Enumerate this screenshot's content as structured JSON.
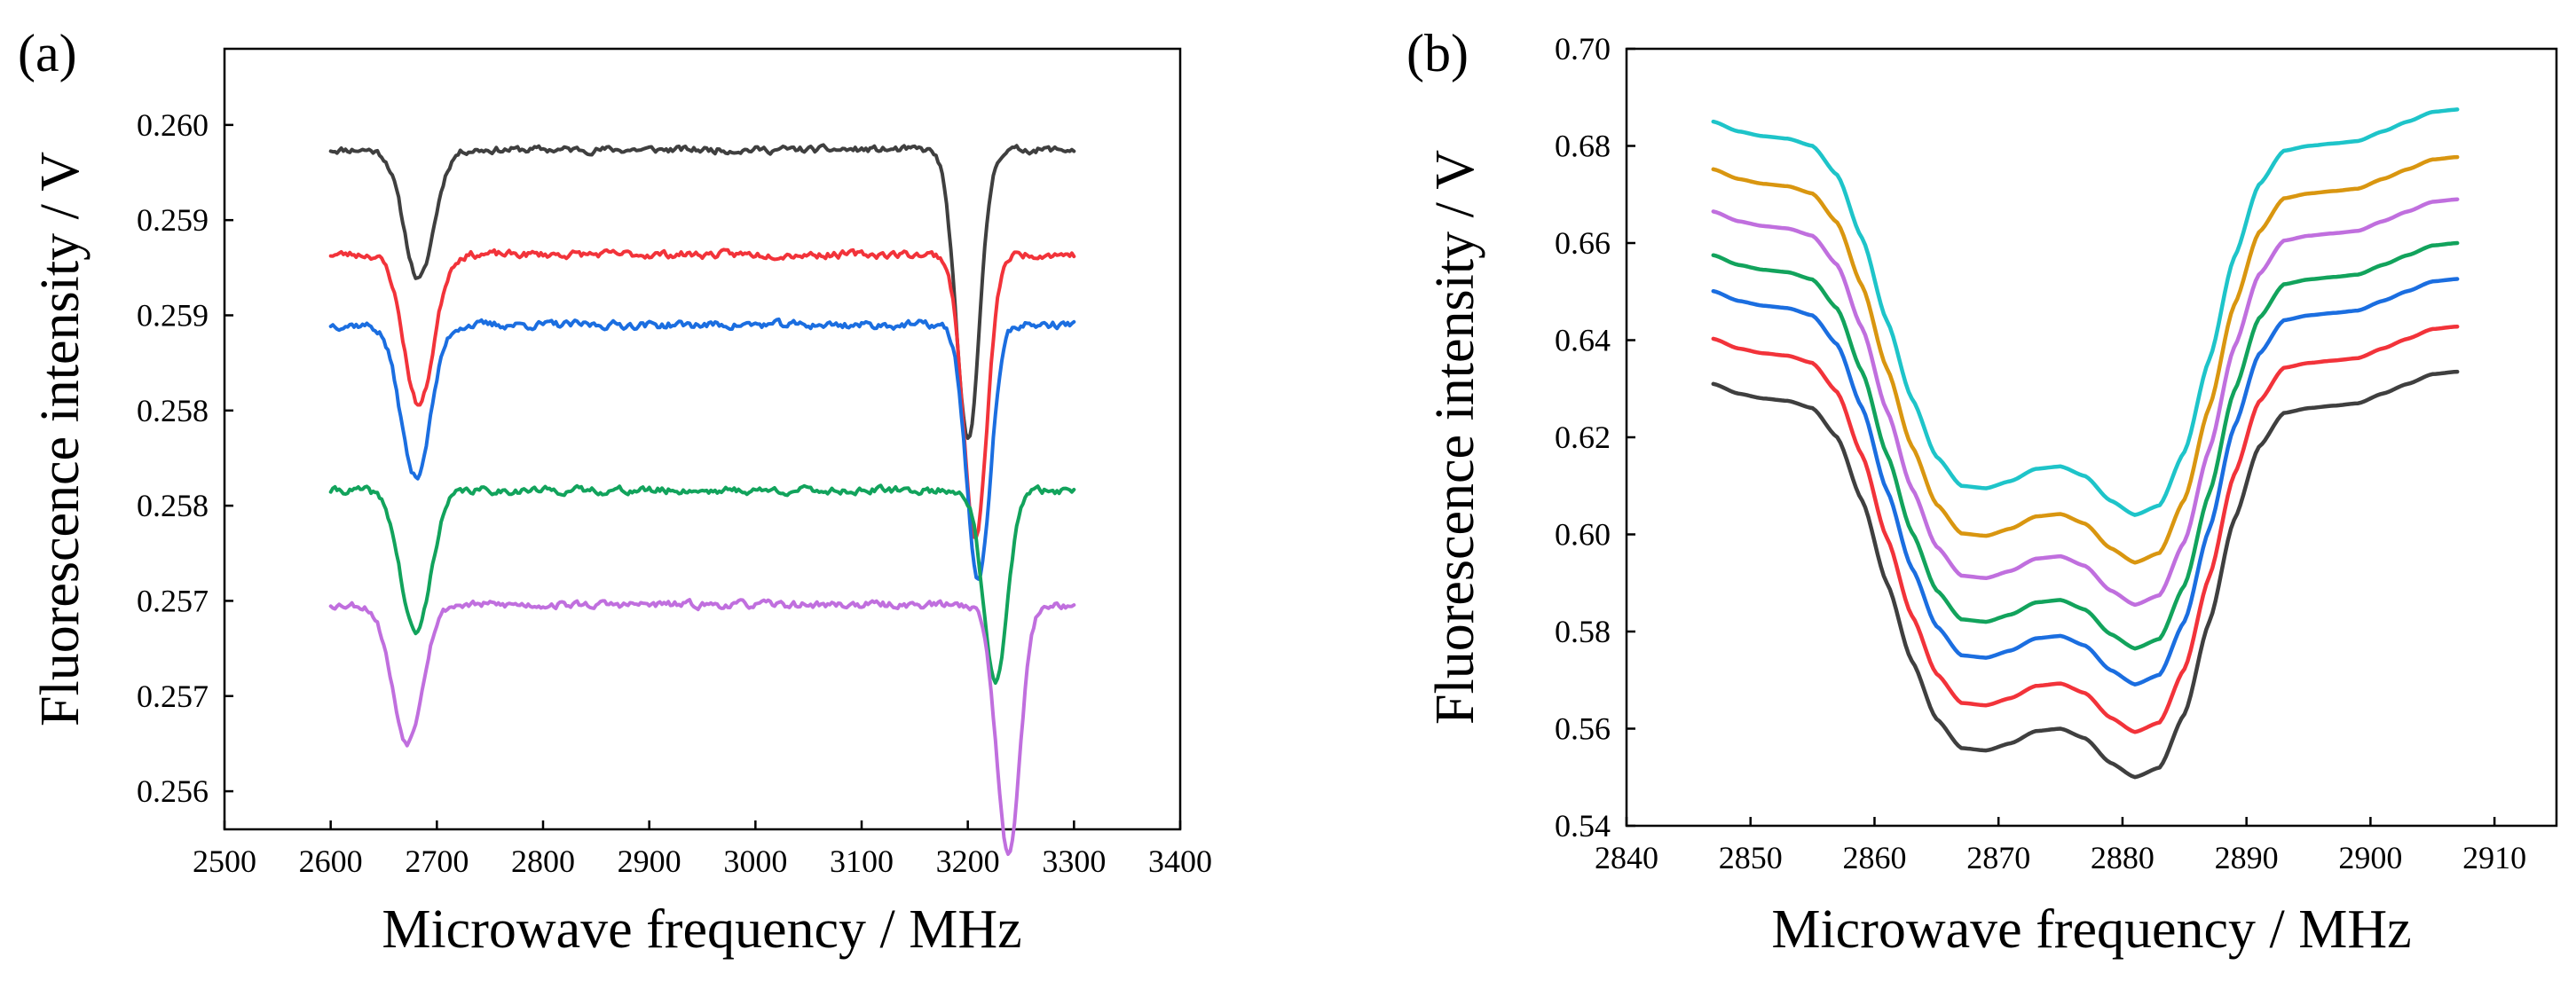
{
  "colors": {
    "black": "#3f3f3f",
    "red": "#f2333a",
    "blue": "#1b6ee0",
    "green": "#12a35c",
    "violet": "#c06fde",
    "cyan": "#1ec4c9",
    "orange": "#d99610"
  },
  "chart_data": [
    {
      "type": "line",
      "panel_label": "(a)",
      "xlabel": "Microwave frequency / MHz",
      "ylabel": "Fluorescence intensity / V",
      "xlim": [
        2500,
        3400
      ],
      "ylim": [
        0.2558,
        0.2599
      ],
      "x_ticks": [
        {
          "value": 2500,
          "label": "2500"
        },
        {
          "value": 2600,
          "label": "2600"
        },
        {
          "value": 2700,
          "label": "2700"
        },
        {
          "value": 2800,
          "label": "2800"
        },
        {
          "value": 2900,
          "label": "2900"
        },
        {
          "value": 3000,
          "label": "3000"
        },
        {
          "value": 3100,
          "label": "3100"
        },
        {
          "value": 3200,
          "label": "3200"
        },
        {
          "value": 3300,
          "label": "3300"
        },
        {
          "value": 3400,
          "label": "3400"
        }
      ],
      "y_ticks": [
        {
          "value": 0.256,
          "label": "0.256"
        },
        {
          "value": 0.2565,
          "label": "0.257"
        },
        {
          "value": 0.257,
          "label": "0.257"
        },
        {
          "value": 0.2575,
          "label": "0.258"
        },
        {
          "value": 0.258,
          "label": "0.258"
        },
        {
          "value": 0.2585,
          "label": "0.259"
        },
        {
          "value": 0.259,
          "label": "0.259"
        },
        {
          "value": 0.2595,
          "label": "0.260"
        }
      ],
      "grid": false,
      "series": [
        {
          "name": "black",
          "color_key": "black",
          "x_range": [
            2600,
            3300
          ],
          "baseline": 0.25937,
          "noise": 1.5e-05,
          "seed": 11,
          "dips": [
            {
              "center": 2683,
              "depth": 0.00068,
              "width": 14
            },
            {
              "center": 3200,
              "depth": 0.00152,
              "width": 11
            }
          ]
        },
        {
          "name": "red",
          "color_key": "red",
          "x_range": [
            2600,
            3300
          ],
          "baseline": 0.25882,
          "noise": 1.6e-05,
          "seed": 23,
          "dips": [
            {
              "center": 2683,
              "depth": 0.00079,
              "width": 14
            },
            {
              "center": 3207,
              "depth": 0.0015,
              "width": 11
            }
          ]
        },
        {
          "name": "blue",
          "color_key": "blue",
          "x_range": [
            2600,
            3300
          ],
          "baseline": 0.25845,
          "noise": 1.7e-05,
          "seed": 37,
          "dips": [
            {
              "center": 2680,
              "depth": 0.0008,
              "width": 14
            },
            {
              "center": 3210,
              "depth": 0.00135,
              "width": 11
            }
          ]
        },
        {
          "name": "green",
          "color_key": "green",
          "x_range": [
            2600,
            3300
          ],
          "baseline": 0.25758,
          "noise": 1.6e-05,
          "seed": 41,
          "dips": [
            {
              "center": 2680,
              "depth": 0.00075,
              "width": 14
            },
            {
              "center": 3226,
              "depth": 0.00102,
              "width": 11
            }
          ]
        },
        {
          "name": "violet",
          "color_key": "violet",
          "x_range": [
            2600,
            3300
          ],
          "baseline": 0.25698,
          "noise": 1.6e-05,
          "seed": 53,
          "dips": [
            {
              "center": 2672,
              "depth": 0.00072,
              "width": 14
            },
            {
              "center": 3238,
              "depth": 0.0013,
              "width": 11
            }
          ]
        }
      ]
    },
    {
      "type": "line",
      "panel_label": "(b)",
      "xlabel": "Microwave frequency / MHz",
      "ylabel": "Fluorescence intensity / V",
      "xlim": [
        2840,
        2915
      ],
      "ylim": [
        0.54,
        0.7
      ],
      "x_ticks": [
        {
          "value": 2840,
          "label": "2840"
        },
        {
          "value": 2850,
          "label": "2850"
        },
        {
          "value": 2860,
          "label": "2860"
        },
        {
          "value": 2870,
          "label": "2870"
        },
        {
          "value": 2880,
          "label": "2880"
        },
        {
          "value": 2890,
          "label": "2890"
        },
        {
          "value": 2900,
          "label": "2900"
        },
        {
          "value": 2910,
          "label": "2910"
        }
      ],
      "y_ticks": [
        {
          "value": 0.54,
          "label": "0.54"
        },
        {
          "value": 0.56,
          "label": "0.56"
        },
        {
          "value": 0.58,
          "label": "0.58"
        },
        {
          "value": 0.6,
          "label": "0.60"
        },
        {
          "value": 0.62,
          "label": "0.62"
        },
        {
          "value": 0.64,
          "label": "0.64"
        },
        {
          "value": 0.66,
          "label": "0.66"
        },
        {
          "value": 0.68,
          "label": "0.68"
        },
        {
          "value": 0.7,
          "label": "0.70"
        }
      ],
      "grid": false,
      "series": [
        {
          "name": "black",
          "color_key": "black",
          "x_range": [
            2847,
            2907
          ],
          "offset": 0.0
        },
        {
          "name": "red",
          "color_key": "red",
          "x_range": [
            2847,
            2907
          ],
          "offset": 0.0093
        },
        {
          "name": "blue",
          "color_key": "blue",
          "x_range": [
            2847,
            2907
          ],
          "offset": 0.0191
        },
        {
          "name": "green",
          "color_key": "green",
          "x_range": [
            2847,
            2907
          ],
          "offset": 0.0265
        },
        {
          "name": "violet",
          "color_key": "violet",
          "x_range": [
            2847,
            2907
          ],
          "offset": 0.0355
        },
        {
          "name": "orange",
          "color_key": "orange",
          "x_range": [
            2847,
            2907
          ],
          "offset": 0.0442
        },
        {
          "name": "cyan",
          "color_key": "cyan",
          "x_range": [
            2847,
            2907
          ],
          "offset": 0.054
        }
      ],
      "base_profile": {
        "x": [
          2847,
          2849,
          2851,
          2853,
          2855,
          2857,
          2859,
          2861,
          2863,
          2865,
          2867,
          2869,
          2871,
          2873,
          2875,
          2877,
          2879,
          2881,
          2883,
          2885,
          2887,
          2889,
          2891,
          2893,
          2895,
          2897,
          2899,
          2901,
          2903,
          2905,
          2907
        ],
        "y": [
          0.631,
          0.629,
          0.628,
          0.6275,
          0.626,
          0.62,
          0.607,
          0.59,
          0.574,
          0.562,
          0.556,
          0.5555,
          0.557,
          0.5595,
          0.56,
          0.558,
          0.553,
          0.55,
          0.552,
          0.563,
          0.582,
          0.603,
          0.618,
          0.625,
          0.626,
          0.6265,
          0.627,
          0.629,
          0.631,
          0.633,
          0.6335
        ]
      }
    }
  ]
}
